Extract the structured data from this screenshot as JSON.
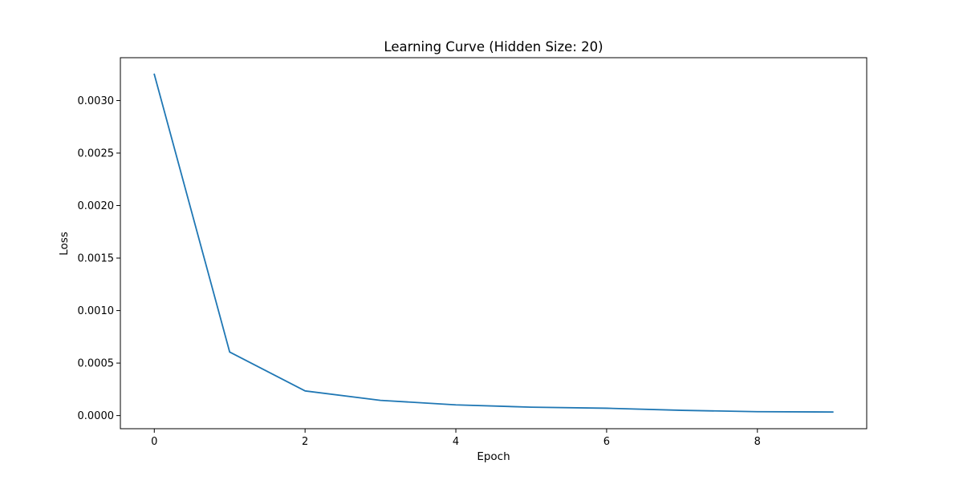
{
  "chart_data": {
    "type": "line",
    "title": "Learning Curve (Hidden Size: 20)",
    "xlabel": "Epoch",
    "ylabel": "Loss",
    "x": [
      0,
      1,
      2,
      3,
      4,
      5,
      6,
      7,
      8,
      9
    ],
    "series": [
      {
        "color": "#1f77b4",
        "values": [
          0.00325,
          0.000605,
          0.000235,
          0.000145,
          0.000102,
          8e-05,
          7e-05,
          5e-05,
          3.7e-05,
          3.4e-05
        ]
      }
    ],
    "xlim": [
      -0.45,
      9.45
    ],
    "ylim": [
      -0.000125,
      0.003408
    ],
    "x_ticks": [
      {
        "value": 0,
        "label": "0"
      },
      {
        "value": 2,
        "label": "2"
      },
      {
        "value": 4,
        "label": "4"
      },
      {
        "value": 6,
        "label": "6"
      },
      {
        "value": 8,
        "label": "8"
      }
    ],
    "y_ticks": [
      {
        "value": 0.0,
        "label": "0.0000"
      },
      {
        "value": 0.0005,
        "label": "0.0005"
      },
      {
        "value": 0.001,
        "label": "0.0010"
      },
      {
        "value": 0.0015,
        "label": "0.0015"
      },
      {
        "value": 0.002,
        "label": "0.0020"
      },
      {
        "value": 0.0025,
        "label": "0.0025"
      },
      {
        "value": 0.003,
        "label": "0.0030"
      }
    ],
    "grid": false,
    "legend": false
  }
}
